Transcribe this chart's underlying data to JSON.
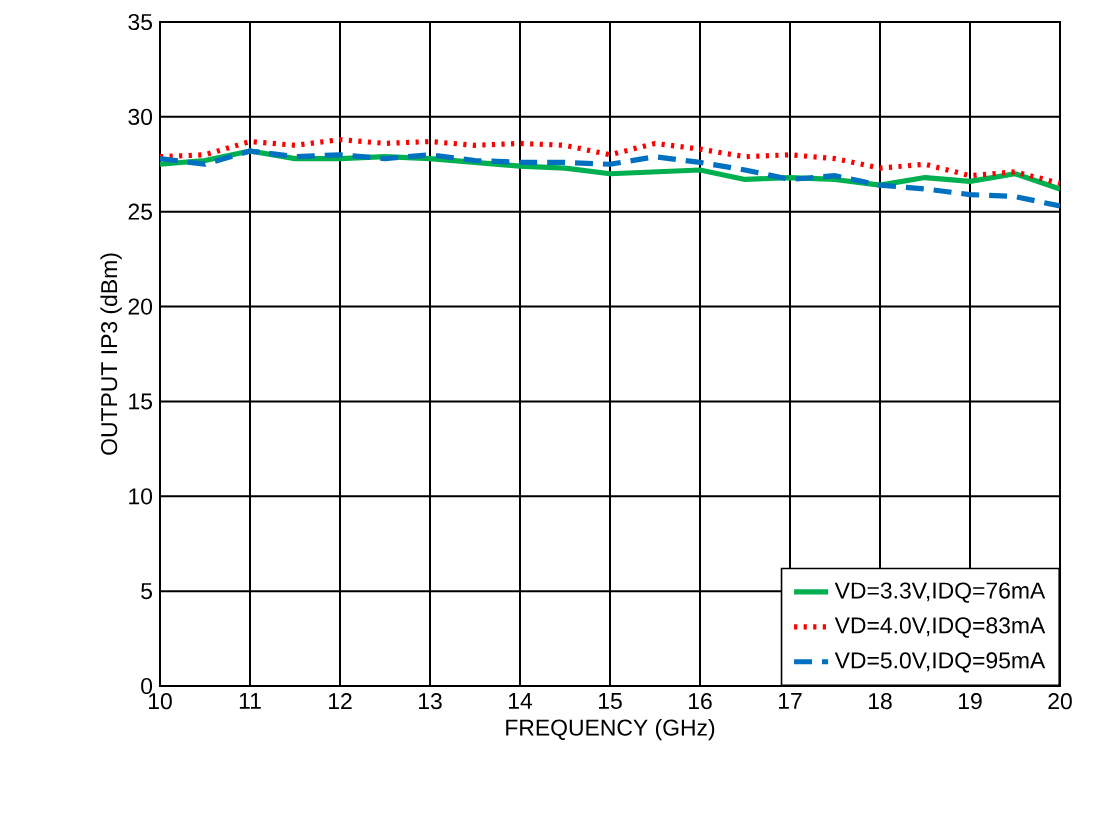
{
  "chart_data": {
    "type": "line",
    "xlabel": "FREQUENCY (GHz)",
    "ylabel": "OUTPUT IP3 (dBm)",
    "x": [
      10,
      10.5,
      11,
      11.5,
      12,
      12.5,
      13,
      13.5,
      14,
      14.5,
      15,
      15.5,
      16,
      16.5,
      17,
      17.5,
      18,
      18.5,
      19,
      19.5,
      20
    ],
    "series": [
      {
        "name": "VD=3.3V,IDQ=76mA",
        "color": "#00b050",
        "line_style": "solid",
        "values": [
          27.5,
          27.7,
          28.2,
          27.8,
          27.8,
          27.9,
          27.8,
          27.6,
          27.4,
          27.3,
          27.0,
          27.1,
          27.2,
          26.7,
          26.8,
          26.7,
          26.4,
          26.8,
          26.6,
          27.0,
          26.2
        ]
      },
      {
        "name": "VD=4.0V,IDQ=83mA",
        "color": "#ff0000",
        "line_style": "dotted",
        "values": [
          27.9,
          28.0,
          28.7,
          28.5,
          28.8,
          28.6,
          28.7,
          28.5,
          28.6,
          28.5,
          28.0,
          28.6,
          28.3,
          27.9,
          28.0,
          27.8,
          27.3,
          27.5,
          26.9,
          27.1,
          26.5
        ]
      },
      {
        "name": "VD=5.0V,IDQ=95mA",
        "color": "#0070c0",
        "line_style": "dashed",
        "values": [
          27.8,
          27.5,
          28.2,
          27.9,
          28.0,
          27.8,
          28.0,
          27.7,
          27.6,
          27.6,
          27.5,
          27.9,
          27.6,
          27.2,
          26.7,
          26.9,
          26.4,
          26.2,
          25.9,
          25.8,
          25.3
        ]
      }
    ],
    "xlim": [
      10,
      20
    ],
    "xticks": [
      10,
      11,
      12,
      13,
      14,
      15,
      16,
      17,
      18,
      19,
      20
    ],
    "ylim": [
      0,
      35
    ],
    "yticks": [
      0,
      5,
      10,
      15,
      20,
      25,
      30,
      35
    ],
    "grid": true,
    "legend": "bottom right",
    "marker": "none"
  }
}
